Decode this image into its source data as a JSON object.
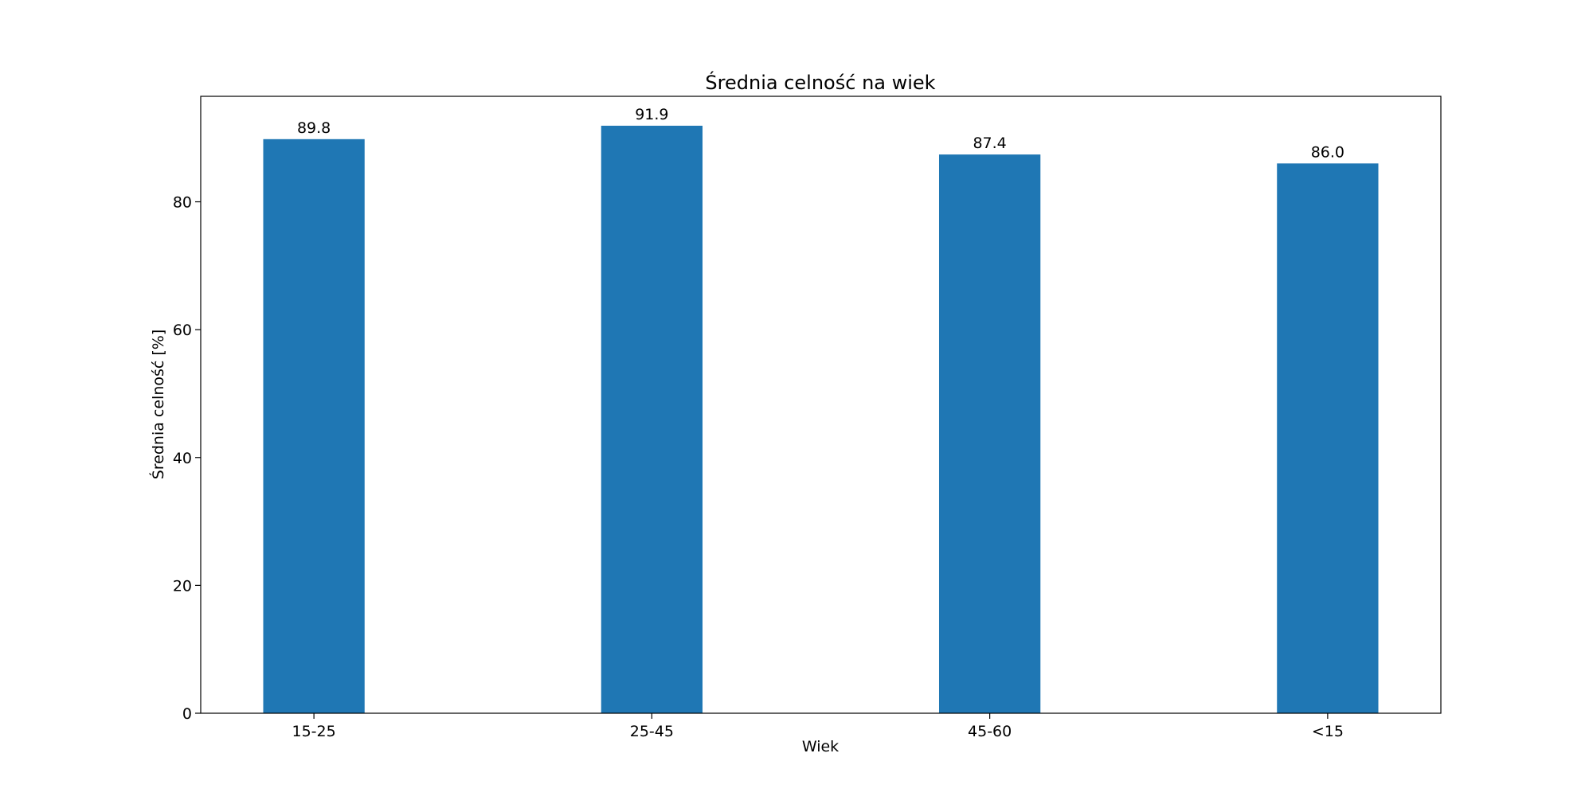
{
  "chart_data": {
    "type": "bar",
    "title": "Średnia celność na wiek",
    "xlabel": "Wiek",
    "ylabel": "Średnia celność [%]",
    "categories": [
      "15-25",
      "25-45",
      "45-60",
      "<15"
    ],
    "values": [
      89.8,
      91.9,
      87.4,
      86.0
    ],
    "value_labels": [
      "89.8",
      "91.9",
      "87.4",
      "86.0"
    ],
    "ylim": [
      0,
      96.5
    ],
    "yticks": [
      0,
      20,
      40,
      60,
      80
    ],
    "grid": false,
    "bar_color": "#1f77b4"
  }
}
